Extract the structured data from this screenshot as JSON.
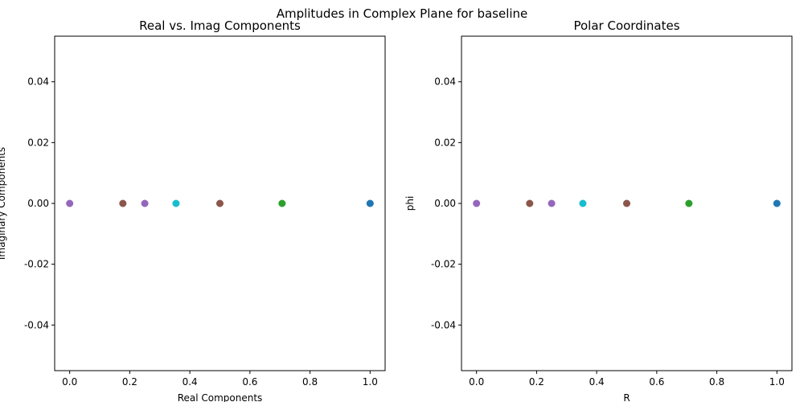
{
  "figure_title": "Amplitudes in Complex Plane for baseline",
  "chart_data": [
    {
      "type": "scatter",
      "title": "Real vs. Imag Components",
      "xlabel": "Real Components",
      "ylabel": "Imaginary Components",
      "xlim": [
        -0.05,
        1.05
      ],
      "ylim": [
        -0.055,
        0.055
      ],
      "xticks": [
        "0.0",
        "0.2",
        "0.4",
        "0.6",
        "0.8",
        "1.0"
      ],
      "yticks": [
        "-0.04",
        "-0.02",
        "0.00",
        "0.02",
        "0.04"
      ],
      "grid": false,
      "points": [
        {
          "x": 0.0,
          "y": 0.0,
          "color": "#9467bd"
        },
        {
          "x": 0.177,
          "y": 0.0,
          "color": "#8c564b"
        },
        {
          "x": 0.25,
          "y": 0.0,
          "color": "#9467bd"
        },
        {
          "x": 0.354,
          "y": 0.0,
          "color": "#17becf"
        },
        {
          "x": 0.5,
          "y": 0.0,
          "color": "#8c564b"
        },
        {
          "x": 0.707,
          "y": 0.0,
          "color": "#2ca02c"
        },
        {
          "x": 1.0,
          "y": 0.0,
          "color": "#1f77b4"
        }
      ]
    },
    {
      "type": "scatter",
      "title": "Polar Coordinates",
      "xlabel": "R",
      "ylabel": "phi",
      "xlim": [
        -0.05,
        1.05
      ],
      "ylim": [
        -0.055,
        0.055
      ],
      "xticks": [
        "0.0",
        "0.2",
        "0.4",
        "0.6",
        "0.8",
        "1.0"
      ],
      "yticks": [
        "-0.04",
        "-0.02",
        "0.00",
        "0.02",
        "0.04"
      ],
      "grid": false,
      "points": [
        {
          "x": 0.0,
          "y": 0.0,
          "color": "#9467bd"
        },
        {
          "x": 0.177,
          "y": 0.0,
          "color": "#8c564b"
        },
        {
          "x": 0.25,
          "y": 0.0,
          "color": "#9467bd"
        },
        {
          "x": 0.354,
          "y": 0.0,
          "color": "#17becf"
        },
        {
          "x": 0.5,
          "y": 0.0,
          "color": "#8c564b"
        },
        {
          "x": 0.707,
          "y": 0.0,
          "color": "#2ca02c"
        },
        {
          "x": 1.0,
          "y": 0.0,
          "color": "#1f77b4"
        }
      ]
    }
  ]
}
